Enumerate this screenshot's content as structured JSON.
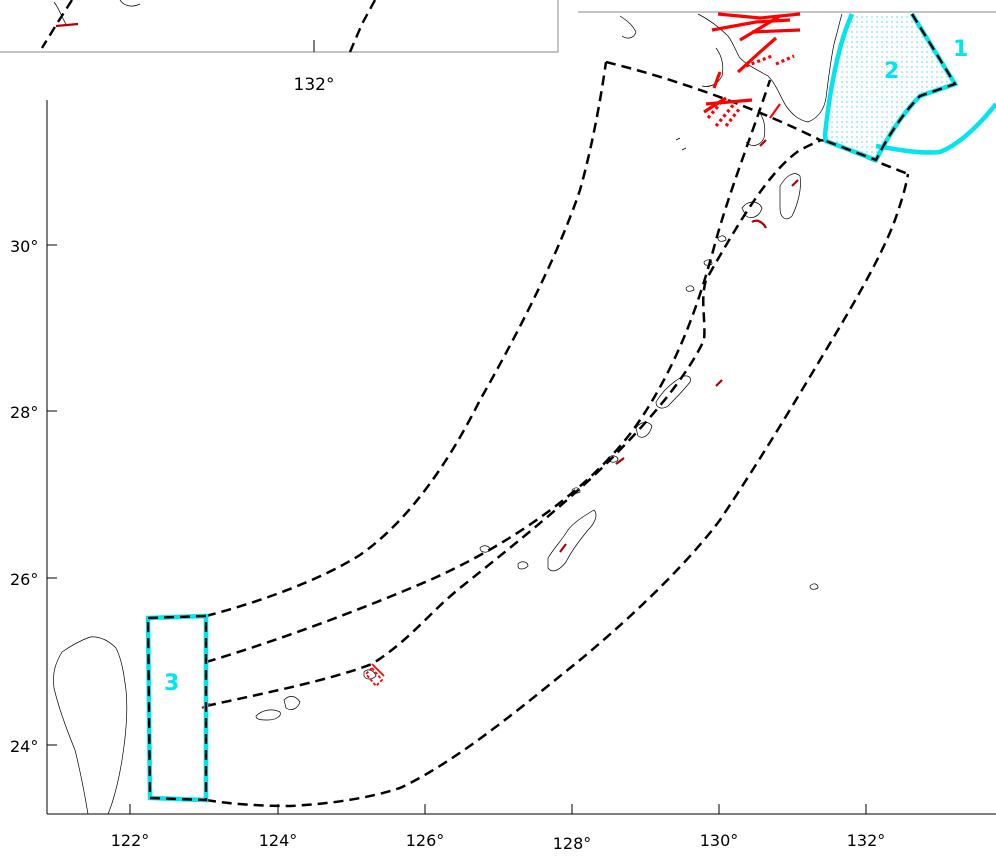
{
  "main_map": {
    "lat_labels": [
      "30°",
      "28°",
      "26°",
      "24°"
    ],
    "lon_labels": [
      "122°",
      "124°",
      "126°",
      "128°",
      "130°",
      "132°"
    ]
  },
  "inset_map": {
    "lon_labels": [
      "132°"
    ]
  },
  "regions": {
    "region_1": {
      "label": "1"
    },
    "region_2": {
      "label": "2"
    },
    "region_3": {
      "label": "3"
    }
  },
  "colors": {
    "region_outline": "#00e5ee",
    "fault_lines": "#ff0000",
    "zone_boundaries": "#000000",
    "coastline": "#000000"
  }
}
